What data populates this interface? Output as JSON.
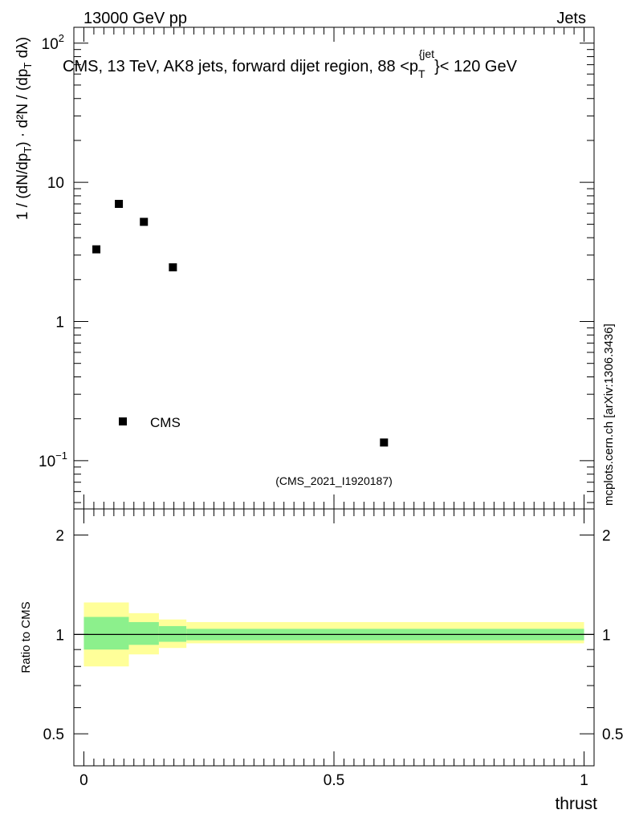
{
  "header": {
    "left": "13000 GeV pp",
    "right": "Jets"
  },
  "side_label": "mcplots.cern.ch [arXiv:1306.3436]",
  "analysis_id": "(CMS_2021_I1920187)",
  "colors": {
    "green_band": "#8cf08c",
    "yellow_band": "#ffff99",
    "marker": "#000000"
  },
  "chart_data": [
    {
      "type": "scatter",
      "title": {
        "main": "CMS, 13 TeV, AK8 jets, forward dijet region, 88 <p",
        "sub": "T",
        "sup": "{jet",
        "end": "}< 120 GeV"
      },
      "ylabel": "1/(dN/dp_T) d²N/(dp_T dλ)",
      "yscale": "log",
      "ylim": [
        0.045,
        130
      ],
      "xlim": [
        -0.02,
        1.02
      ],
      "yticks": [
        {
          "value": 0.1,
          "base": "10",
          "exp": "−1"
        },
        {
          "value": 1,
          "base": "1",
          "exp": ""
        },
        {
          "value": 10,
          "base": "10",
          "exp": ""
        },
        {
          "value": 100,
          "base": "10",
          "exp": "2"
        }
      ],
      "legend": {
        "label": "CMS",
        "position": "bottom-left"
      },
      "series": [
        {
          "name": "CMS",
          "x": [
            0.025,
            0.07,
            0.12,
            0.178,
            0.6
          ],
          "y": [
            3.3,
            7.0,
            5.2,
            2.45,
            0.135
          ]
        }
      ]
    },
    {
      "type": "area",
      "ylabel": "Ratio to CMS",
      "xlabel": "thrust",
      "yscale": "log",
      "ylim": [
        0.4,
        2.4
      ],
      "xlim": [
        -0.02,
        1.02
      ],
      "yticks": [
        {
          "value": 0.5,
          "label": "0.5"
        },
        {
          "value": 1,
          "label": "1"
        },
        {
          "value": 2,
          "label": "2"
        }
      ],
      "xticks": [
        {
          "value": 0,
          "label": "0"
        },
        {
          "value": 0.5,
          "label": "0.5"
        },
        {
          "value": 1,
          "label": "1"
        }
      ],
      "reference_line": 1,
      "bins": [
        {
          "lo": 0.0,
          "hi": 0.09,
          "inner_lo": 0.9,
          "inner_hi": 1.13,
          "outer_lo": 0.8,
          "outer_hi": 1.25
        },
        {
          "lo": 0.09,
          "hi": 0.15,
          "inner_lo": 0.93,
          "inner_hi": 1.09,
          "outer_lo": 0.87,
          "outer_hi": 1.16
        },
        {
          "lo": 0.15,
          "hi": 0.205,
          "inner_lo": 0.95,
          "inner_hi": 1.06,
          "outer_lo": 0.91,
          "outer_hi": 1.11
        },
        {
          "lo": 0.205,
          "hi": 1.0,
          "inner_lo": 0.96,
          "inner_hi": 1.04,
          "outer_lo": 0.94,
          "outer_hi": 1.09
        }
      ]
    }
  ]
}
